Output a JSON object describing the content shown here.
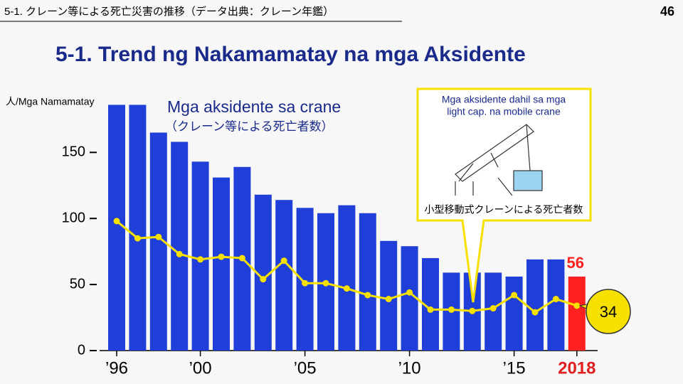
{
  "header": {
    "text": "5-1. クレーン等による死亡災害の推移（データ出典：クレーン年鑑）",
    "page": "46"
  },
  "chart_data": {
    "type": "bar-line",
    "title": "5-1. Trend ng Nakamamatay na mga Aksidente",
    "y_label": "人/Mga Namamatay",
    "categories": [
      "’96",
      null,
      null,
      null,
      "’00",
      null,
      null,
      null,
      null,
      "’05",
      null,
      null,
      null,
      null,
      "’10",
      null,
      null,
      null,
      null,
      "’15",
      null,
      null,
      "2018"
    ],
    "series": [
      {
        "name": "Mga aksidente sa crane",
        "subname": "（クレーン等による死亡者数）",
        "type": "bar",
        "color": "#1f3fd8",
        "highlight_color": "#ff2020",
        "values": [
          186,
          186,
          165,
          158,
          143,
          131,
          139,
          118,
          114,
          108,
          104,
          110,
          104,
          83,
          79,
          70,
          59,
          59,
          59,
          56,
          69,
          69,
          56
        ]
      },
      {
        "name": [
          "Mga aksidente dahil sa mga",
          "light cap. na mobile crane"
        ],
        "subname": "小型移動式クレーンによる死亡者数",
        "type": "line",
        "color": "#f5e000",
        "values": [
          98,
          85,
          86,
          73,
          69,
          71,
          70,
          54,
          68,
          51,
          51,
          47,
          42,
          39,
          44,
          31,
          31,
          30,
          32,
          42,
          29,
          39,
          34
        ]
      }
    ],
    "ylim": [
      0,
      190
    ],
    "yticks": [
      0,
      50,
      100,
      150
    ]
  }
}
